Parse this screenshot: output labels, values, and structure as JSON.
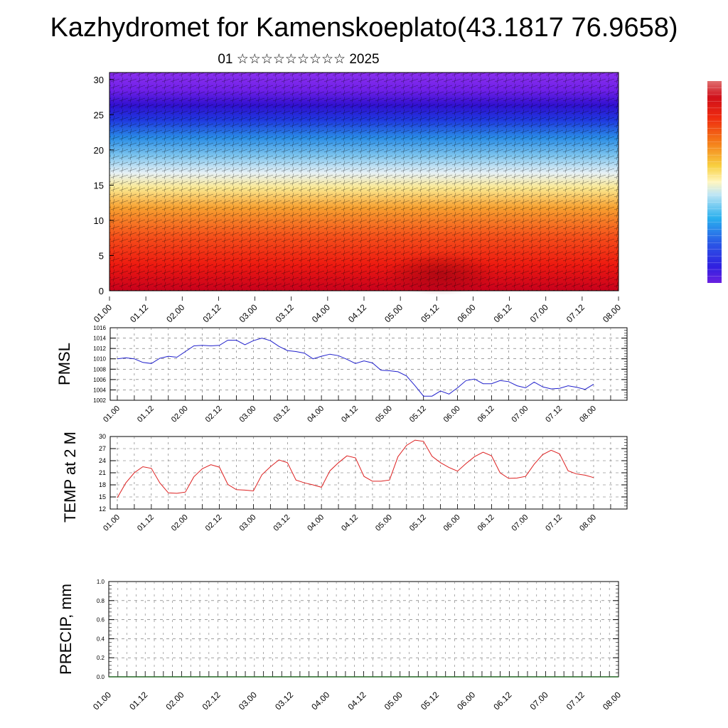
{
  "header": {
    "title": "Kazhydromet for Kamenskoeplato(43.1817 76.9658)",
    "subtitle": "01 ☆☆☆☆☆☆☆☆☆ 2025"
  },
  "time_labels": [
    "01.00",
    "01.12",
    "02.00",
    "02.12",
    "03.00",
    "03.12",
    "04.00",
    "04.12",
    "05.00",
    "05.12",
    "06.00",
    "06.12",
    "07.00",
    "07.12",
    "08.00"
  ],
  "colors": {
    "pmsl_line": "#2020cc",
    "temp_line": "#dd2020",
    "grid": "#555555",
    "precip_line": "#226622"
  },
  "chart_data": [
    {
      "type": "heatmap",
      "name": "vertical-cross-section",
      "xlabel": "",
      "ylabel": "",
      "ylim": [
        0,
        31
      ],
      "yticks": [
        "0",
        "5",
        "10",
        "15",
        "20",
        "25",
        "30"
      ],
      "colorbar": "purple-blue-yellow-red",
      "overlay": "wind-barbs"
    },
    {
      "type": "line",
      "name": "pmsl",
      "ylabel": "PMSL",
      "ylim": [
        1002,
        1016
      ],
      "yticks": [
        "1002",
        "1004",
        "1006",
        "1008",
        "1010",
        "1012",
        "1014",
        "1016"
      ],
      "x": [
        0,
        3,
        6,
        9,
        12,
        15,
        18,
        21,
        24,
        27,
        30,
        33,
        36,
        39,
        42,
        45,
        48,
        51,
        54,
        57,
        60,
        63,
        66,
        69,
        72,
        75,
        78,
        81,
        84,
        87,
        90,
        93,
        96,
        99,
        102,
        105,
        108,
        111,
        114,
        117,
        120,
        123,
        126,
        129,
        132,
        135,
        138,
        141,
        144,
        147,
        150,
        153,
        156,
        159,
        162,
        165,
        168
      ],
      "values": [
        1010,
        1010.2,
        1010,
        1009.3,
        1009.1,
        1010.1,
        1010.5,
        1010.3,
        1011.4,
        1012.5,
        1012.6,
        1012.5,
        1012.6,
        1013.6,
        1013.6,
        1012.7,
        1013.5,
        1014,
        1013.5,
        1012.4,
        1011.6,
        1011.4,
        1011.1,
        1010,
        1010.5,
        1010.9,
        1010.6,
        1009.9,
        1009.1,
        1009.6,
        1009.2,
        1007.8,
        1007.7,
        1007.5,
        1006.7,
        1004.8,
        1002.8,
        1002.8,
        1003.8,
        1003.2,
        1004.4,
        1005.8,
        1006.1,
        1005.2,
        1005.2,
        1005.8,
        1005.6,
        1004.8,
        1004.4,
        1005.5,
        1004.6,
        1004.2,
        1004.3,
        1004.8,
        1004.5,
        1004.1,
        1005.1
      ]
    },
    {
      "type": "line",
      "name": "temp-2m",
      "ylabel": "TEMP at 2 M",
      "ylim": [
        12,
        30
      ],
      "yticks": [
        "12",
        "15",
        "18",
        "21",
        "24",
        "27",
        "30"
      ],
      "x": [
        0,
        3,
        6,
        9,
        12,
        15,
        18,
        21,
        24,
        27,
        30,
        33,
        36,
        39,
        42,
        45,
        48,
        51,
        54,
        57,
        60,
        63,
        66,
        69,
        72,
        75,
        78,
        81,
        84,
        87,
        90,
        93,
        96,
        99,
        102,
        105,
        108,
        111,
        114,
        117,
        120,
        123,
        126,
        129,
        132,
        135,
        138,
        141,
        144,
        147,
        150,
        153,
        156,
        159,
        162,
        165,
        168
      ],
      "values": [
        14.8,
        18.5,
        21,
        22.5,
        22.1,
        18.5,
        16,
        15.9,
        16.2,
        20,
        22,
        23,
        22.4,
        18.1,
        16.8,
        16.7,
        16.5,
        20.5,
        22.5,
        24.2,
        23.5,
        19.2,
        18.5,
        18,
        17.4,
        21.5,
        23.5,
        25.2,
        24.7,
        20.1,
        18.9,
        18.9,
        19.2,
        25,
        27.8,
        29.1,
        28.8,
        25.1,
        23.5,
        22.3,
        21.4,
        23.3,
        25,
        26.1,
        25.2,
        21,
        19.6,
        19.7,
        20.1,
        23.1,
        25.5,
        26.6,
        25.7,
        21.5,
        20.7,
        20.4,
        19.8
      ]
    },
    {
      "type": "line",
      "name": "precip",
      "ylabel": "PRECIP, mm",
      "ylim": [
        0,
        1
      ],
      "yticks": [
        "0.0",
        "0.2",
        "0.4",
        "0.6",
        "0.8",
        "1.0"
      ],
      "x": [
        0,
        168
      ],
      "values": [
        0,
        0
      ]
    }
  ]
}
